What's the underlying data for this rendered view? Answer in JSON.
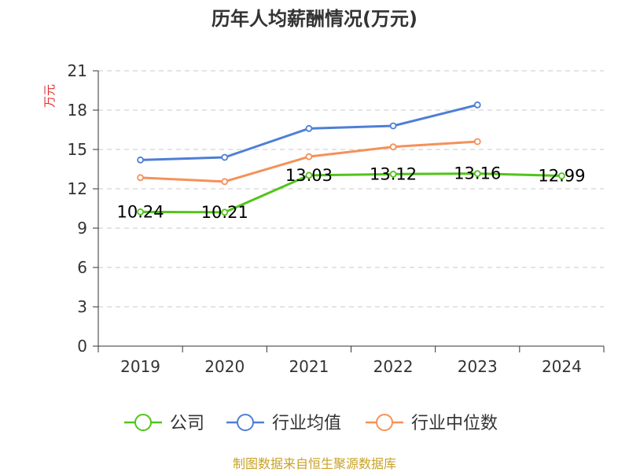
{
  "chart_data": {
    "type": "line",
    "title": "历年人均薪酬情况(万元)",
    "ylabel": "万元",
    "xlabel": "",
    "categories": [
      "2019",
      "2020",
      "2021",
      "2022",
      "2023",
      "2024"
    ],
    "ylim": [
      0,
      21
    ],
    "yticks": [
      "0",
      "3",
      "6",
      "9",
      "12",
      "15",
      "18",
      "21"
    ],
    "grid": true,
    "legend_position": "bottom",
    "series": [
      {
        "name": "公司",
        "color": "#52c41a",
        "values": [
          10.24,
          10.21,
          13.03,
          13.12,
          13.16,
          12.99
        ],
        "labels": [
          "10.24",
          "10.21",
          "13.03",
          "13.12",
          "13.16",
          "12.99"
        ]
      },
      {
        "name": "行业均值",
        "color": "#4e7fd6",
        "values": [
          14.2,
          14.4,
          16.6,
          16.8,
          18.4,
          null
        ]
      },
      {
        "name": "行业中位数",
        "color": "#f5915a",
        "values": [
          12.85,
          12.55,
          14.45,
          15.2,
          15.6,
          null
        ]
      }
    ]
  },
  "footer": {
    "source": "制图数据来自恒生聚源数据库",
    "source_color": "#c9a227"
  },
  "ylabel_color": "#e03030"
}
